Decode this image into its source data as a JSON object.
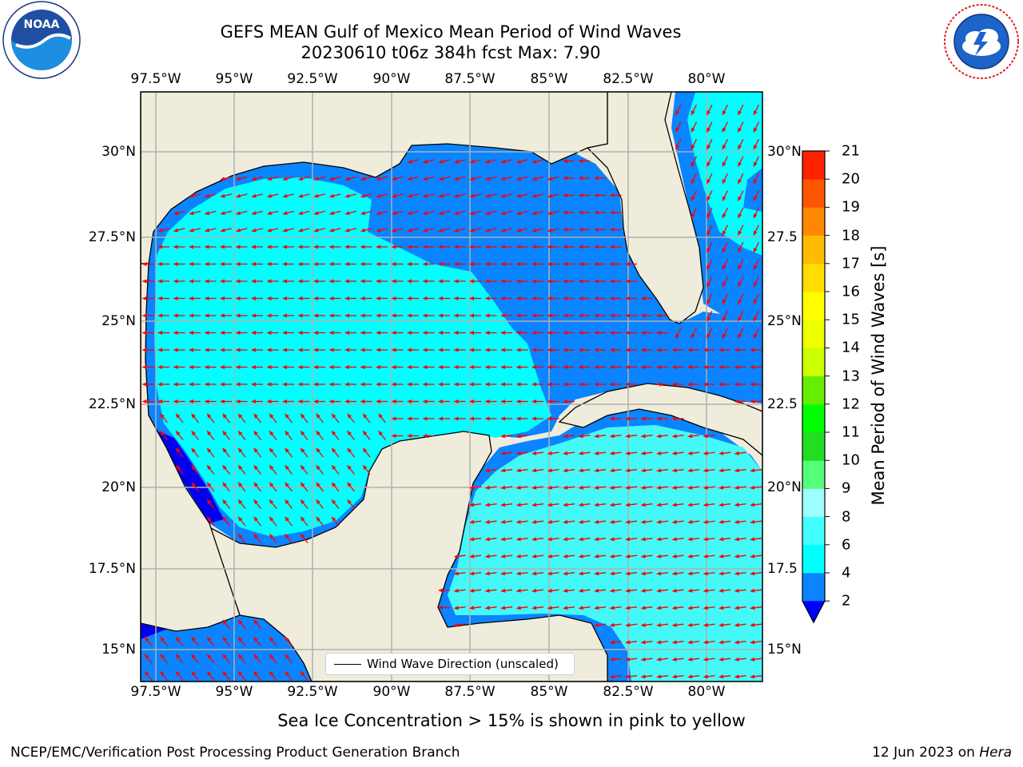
{
  "header": {
    "title": "GEFS MEAN Gulf of Mexico Mean Period of Wind Waves",
    "subtitle": "20230610 t06z 384h fcst   Max: 7.90"
  },
  "logos": {
    "left": {
      "name": "noaa-logo",
      "text": "NOAA",
      "ring_text": "NATIONAL OCEANIC AND ATMOSPHERIC ADMINISTRATION · U.S. DEPARTMENT OF COMMERCE"
    },
    "right": {
      "name": "nws-logo",
      "ring_text": "NATIONAL WEATHER SERVICE"
    }
  },
  "map": {
    "lon_ticks": [
      "97.5°W",
      "95°W",
      "92.5°W",
      "90°W",
      "87.5°W",
      "85°W",
      "82.5°W",
      "80°W"
    ],
    "lat_ticks_left": [
      "30°N",
      "27.5°N",
      "25°N",
      "22.5°N",
      "20°N",
      "17.5°N",
      "15°N"
    ],
    "lat_ticks_right": [
      "30°N",
      "27.5",
      "25°N",
      "22.5",
      "20°N",
      "17.5",
      "15°N"
    ],
    "colors": {
      "land": "#efecdc",
      "ocean_2_4": "#0a84ff",
      "ocean_4_6": "#00ffff",
      "ocean_6_8": "#44f8f8",
      "ocean_lt2": "#0000ee",
      "arrow": "#ff0000",
      "grid": "#b0b0b0"
    },
    "legend_label": "Wind Wave Direction (unscaled)"
  },
  "colorbar": {
    "label": "Mean Period of Wind Waves [s]",
    "ticks": [
      "2",
      "4",
      "6",
      "8",
      "9",
      "10",
      "11",
      "12",
      "13",
      "14",
      "15",
      "16",
      "17",
      "18",
      "19",
      "20",
      "21"
    ],
    "colors": [
      "#0a84ff",
      "#00ffff",
      "#44ffff",
      "#9effff",
      "#55ff77",
      "#22dd22",
      "#00ff00",
      "#66ee00",
      "#ccff00",
      "#eeff00",
      "#ffff00",
      "#ffdd00",
      "#ffbb00",
      "#ff8800",
      "#ff5500",
      "#ff2200"
    ],
    "extend_color": "#0000ff"
  },
  "ice_note": "Sea Ice Concentration > 15% is shown in pink to yellow",
  "footer": {
    "left": "NCEP/EMC/Verification Post Processing Product Generation Branch",
    "date": "12 Jun 2023 on ",
    "machine": "Hera"
  }
}
